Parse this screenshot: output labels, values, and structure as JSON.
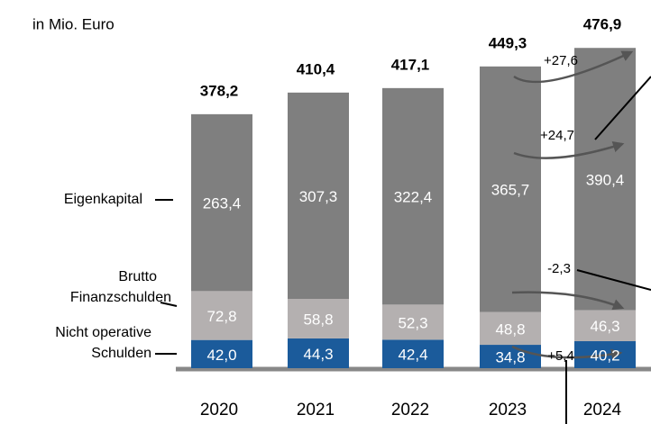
{
  "chart_data": {
    "type": "bar",
    "stacked": true,
    "subtitle": "in Mio. Euro",
    "categories": [
      "2020",
      "2021",
      "2022",
      "2023",
      "2024"
    ],
    "series": [
      {
        "name": "Nicht operative\nSchulden",
        "color": "#1b5b9b",
        "values": [
          42.0,
          44.3,
          42.4,
          34.8,
          40.2
        ],
        "value_labels": [
          "42,0",
          "44,3",
          "42,4",
          "34,8",
          "40,2"
        ]
      },
      {
        "name": "Brutto\nFinanzschulden",
        "color": "#b4b0b0",
        "values": [
          72.8,
          58.8,
          52.3,
          48.8,
          46.3
        ],
        "value_labels": [
          "72,8",
          "58,8",
          "52,3",
          "48,8",
          "46,3"
        ]
      },
      {
        "name": "Eigenkapital",
        "color": "#7f7f7f",
        "values": [
          263.4,
          307.3,
          322.4,
          365.7,
          390.4
        ],
        "value_labels": [
          "263,4",
          "307,3",
          "322,4",
          "365,7",
          "390,4"
        ]
      }
    ],
    "totals": {
      "values": [
        378.2,
        410.4,
        417.1,
        449.3,
        476.9
      ],
      "value_labels": [
        "378,2",
        "410,4",
        "417,1",
        "449,3",
        "476,9"
      ]
    },
    "annotations": [
      "+27,6",
      "+24,7",
      "-2,3",
      "+5,4"
    ]
  }
}
